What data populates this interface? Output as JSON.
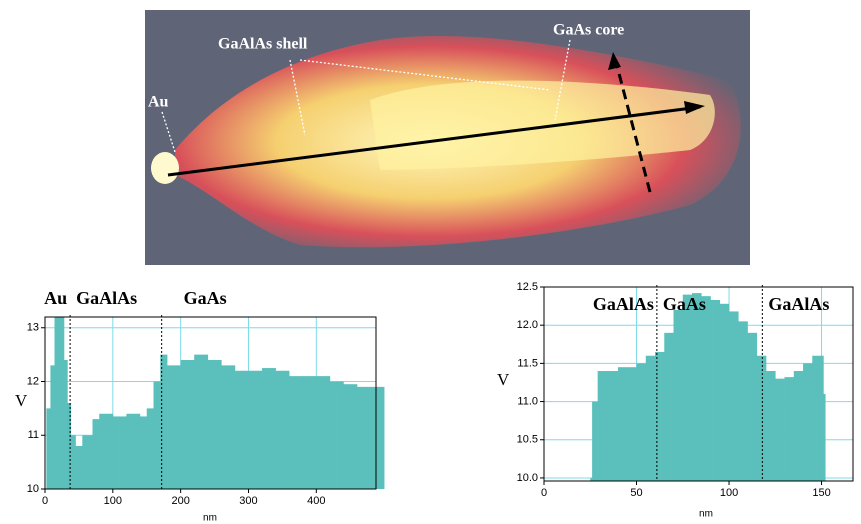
{
  "image": {
    "labels": [
      "GaAlAs shell",
      "GaAs core",
      "Au"
    ]
  },
  "chart_data": [
    {
      "type": "area",
      "color": "#5bbfbb",
      "ylabel": "V",
      "xlabel": "nm",
      "xlim": [
        0,
        488
      ],
      "ylim": [
        10,
        13.2
      ],
      "xticks": [
        0,
        100,
        200,
        300,
        400
      ],
      "yticks": [
        10,
        11,
        12,
        13
      ],
      "grid": true,
      "regions": [
        "Au",
        "GaAlAs",
        "GaAs"
      ],
      "dividers": [
        37,
        172
      ],
      "x": [
        2,
        8,
        14,
        22,
        28,
        33,
        38,
        45,
        55,
        70,
        80,
        100,
        120,
        140,
        150,
        160,
        170,
        180,
        200,
        220,
        240,
        260,
        280,
        300,
        320,
        340,
        360,
        380,
        400,
        420,
        440,
        460,
        480
      ],
      "values": [
        11.5,
        12.3,
        13.2,
        13.2,
        12.4,
        11.6,
        11.0,
        10.8,
        11.0,
        11.3,
        11.4,
        11.35,
        11.4,
        11.35,
        11.5,
        12.0,
        12.5,
        12.3,
        12.4,
        12.5,
        12.4,
        12.3,
        12.2,
        12.2,
        12.25,
        12.2,
        12.1,
        12.1,
        12.1,
        12.0,
        11.95,
        11.9,
        11.9
      ]
    },
    {
      "type": "area",
      "color": "#5bbfbb",
      "ylabel": "V",
      "xlabel": "nm",
      "xlim": [
        0,
        167
      ],
      "ylim": [
        9.96,
        12.5
      ],
      "xticks": [
        0,
        50,
        100,
        150
      ],
      "yticks": [
        {
          "value": 10,
          "label": "10.0"
        },
        10.5,
        {
          "value": 11,
          "label": "11.0"
        },
        11.5,
        {
          "value": 12,
          "label": "12.0"
        },
        12.5
      ],
      "grid": true,
      "regions": [
        "GaAlAs",
        "GaAs",
        "GaAlAs"
      ],
      "dividers": [
        61,
        118
      ],
      "x": [
        25,
        26,
        29,
        35,
        40,
        45,
        50,
        55,
        60,
        65,
        70,
        75,
        80,
        85,
        90,
        95,
        100,
        105,
        110,
        115,
        120,
        125,
        130,
        135,
        140,
        145,
        150,
        151
      ],
      "values": [
        10.0,
        11.0,
        11.4,
        11.4,
        11.45,
        11.45,
        11.5,
        11.6,
        11.65,
        11.9,
        12.2,
        12.4,
        12.42,
        12.38,
        12.33,
        12.28,
        12.18,
        12.05,
        11.9,
        11.6,
        11.4,
        11.3,
        11.32,
        11.4,
        11.5,
        11.6,
        11.6,
        11.1
      ]
    }
  ]
}
